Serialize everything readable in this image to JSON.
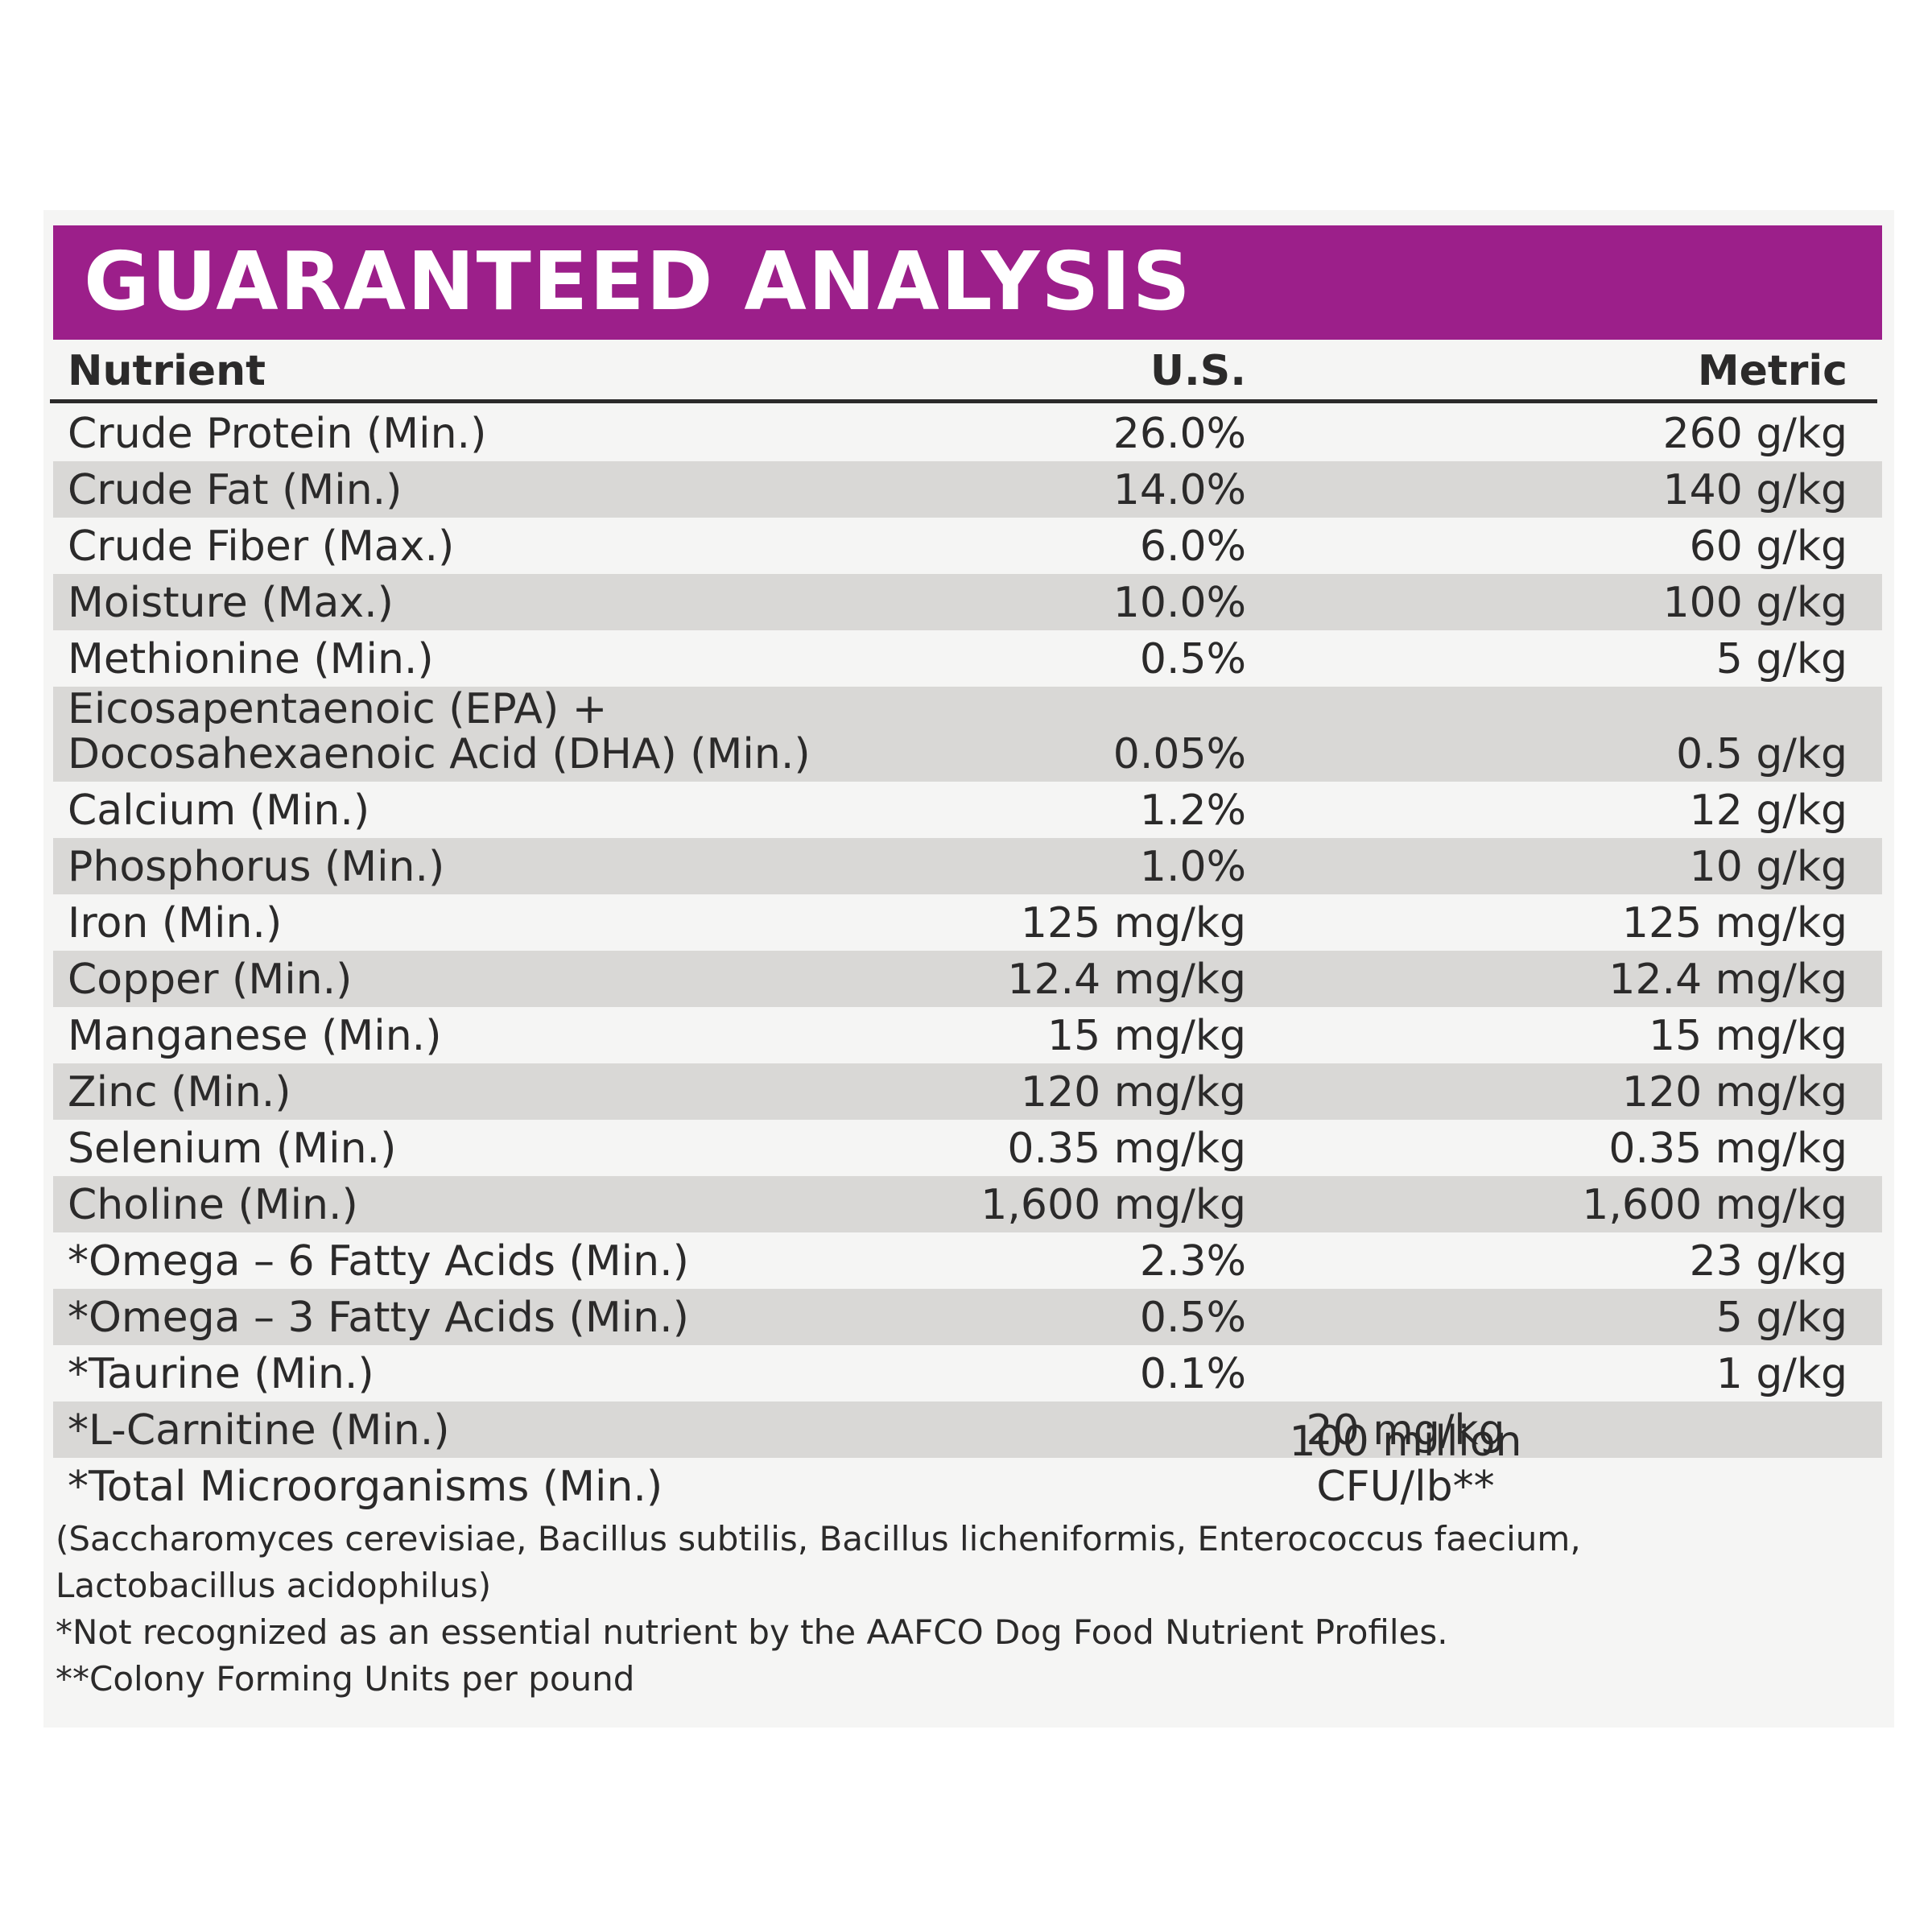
{
  "header": {
    "title": "GUARANTEED ANALYSIS"
  },
  "table": {
    "headers": [
      "Nutrient",
      "U.S.",
      "Metric"
    ],
    "rows": [
      [
        "Crude Protein (Min.)",
        "26.0%",
        "260 g/kg"
      ],
      [
        "Crude Fat (Min.)",
        "14.0%",
        "140 g/kg"
      ],
      [
        "Crude Fiber (Max.)",
        "6.0%",
        "60 g/kg"
      ],
      [
        "Moisture (Max.)",
        "10.0%",
        "100 g/kg"
      ],
      [
        "Methionine (Min.)",
        "0.5%",
        "5 g/kg"
      ],
      [
        "Eicosapentaenoic (EPA) +\nDocosahexaenoic Acid (DHA) (Min.)",
        "0.05%",
        "0.5 g/kg"
      ],
      [
        "Calcium (Min.)",
        "1.2%",
        "12 g/kg"
      ],
      [
        "Phosphorus (Min.)",
        "1.0%",
        "10 g/kg"
      ],
      [
        "Iron (Min.)",
        "125 mg/kg",
        "125 mg/kg"
      ],
      [
        "Copper (Min.)",
        "12.4 mg/kg",
        "12.4 mg/kg"
      ],
      [
        "Manganese (Min.)",
        "15 mg/kg",
        "15 mg/kg"
      ],
      [
        "Zinc (Min.)",
        "120 mg/kg",
        "120 mg/kg"
      ],
      [
        "Selenium (Min.)",
        "0.35 mg/kg",
        "0.35 mg/kg"
      ],
      [
        "Choline (Min.)",
        "1,600 mg/kg",
        "1,600 mg/kg"
      ],
      [
        "*Omega – 6 Fatty Acids (Min.)",
        "2.3%",
        "23 g/kg"
      ],
      [
        "*Omega – 3 Fatty Acids (Min.)",
        "0.5%",
        "5 g/kg"
      ],
      [
        "*Taurine (Min.)",
        "0.1%",
        "1 g/kg"
      ],
      [
        "*L-Carnitine (Min.)",
        "20 mg/kg"
      ],
      [
        "*Total Microorganisms (Min.)",
        "100 million CFU/lb**"
      ]
    ]
  },
  "notes": [
    "(Saccharomyces cerevisiae, Bacillus subtilis, Bacillus licheniformis, Enterococcus faecium, Lactobacillus acidophilus)",
    "*Not recognized as an essential nutrient by the AAFCO Dog Food Nutrient Profiles.",
    "**Colony Forming Units per pound"
  ]
}
